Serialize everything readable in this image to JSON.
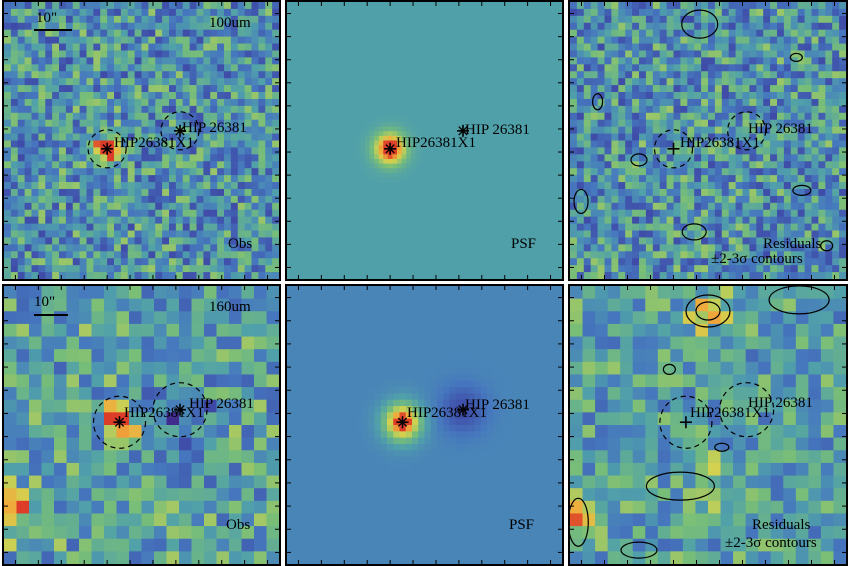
{
  "panels": [
    {
      "row": "100um",
      "kind": "obs",
      "band_label": "100um",
      "scale_label": "10\"",
      "corner_label": "Obs",
      "corner_label2": ""
    },
    {
      "row": "100um",
      "kind": "psf",
      "corner_label": "PSF",
      "corner_label2": ""
    },
    {
      "row": "100um",
      "kind": "res",
      "corner_label": "Residuals",
      "corner_label2": "±2-3σ contours"
    },
    {
      "row": "160um",
      "kind": "obs",
      "band_label": "160um",
      "scale_label": "10\"",
      "corner_label": "Obs",
      "corner_label2": ""
    },
    {
      "row": "160um",
      "kind": "psf",
      "corner_label": "PSF",
      "corner_label2": ""
    },
    {
      "row": "160um",
      "kind": "res",
      "corner_label": "Residuals",
      "corner_label2": "±2-3σ contours"
    }
  ],
  "sources": {
    "primary": "HIP 26381",
    "secondary": "HIP26381X1"
  },
  "colors": {
    "frame": "#000000",
    "map_low": "#5a2a8c",
    "map_mid": "#4fa3a8",
    "map_high": "#f5b53a",
    "map_peak": "#e0452a"
  }
}
